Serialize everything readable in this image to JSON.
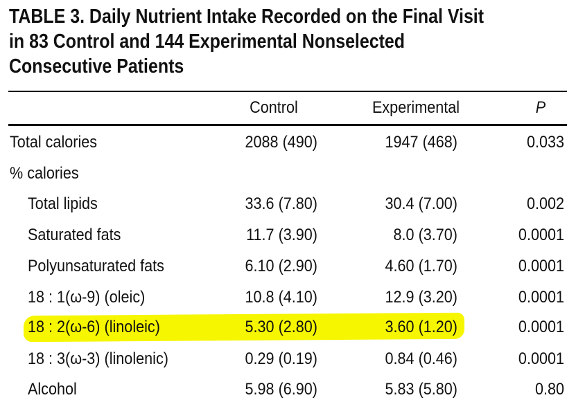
{
  "title": "TABLE 3.   Daily Nutrient Intake Recorded on the Final Visit in 83 Control and 144 Experimental Nonselected Consecutive Patients",
  "headers": {
    "label": "",
    "control": "Control",
    "experimental": "Experimental",
    "p": "P"
  },
  "rows": [
    {
      "label": "Total calories",
      "control": "2088 (490)",
      "experimental": "1947 (468)",
      "p": "0.033"
    },
    {
      "label": "% calories",
      "control": "",
      "experimental": "",
      "p": ""
    },
    {
      "label": "Total lipids",
      "control": "33.6 (7.80)",
      "experimental": "30.4 (7.00)",
      "p": "0.002"
    },
    {
      "label": "Saturated fats",
      "control": "11.7 (3.90)",
      "experimental": "8.0 (3.70)",
      "p": "0.0001"
    },
    {
      "label": "Polyunsaturated fats",
      "control": "6.10 (2.90)",
      "experimental": "4.60 (1.70)",
      "p": "0.0001"
    },
    {
      "label": "18 : 1(ω-9) (oleic)",
      "control": "10.8 (4.10)",
      "experimental": "12.9 (3.20)",
      "p": "0.0001"
    },
    {
      "label": "18 : 2(ω-6) (linoleic)",
      "control": "5.30 (2.80)",
      "experimental": "3.60 (1.20)",
      "p": "0.0001"
    },
    {
      "label": "18 : 3(ω-3) (linolenic)",
      "control": "0.29 (0.19)",
      "experimental": "0.84 (0.46)",
      "p": "0.0001"
    },
    {
      "label": "Alcohol",
      "control": "5.98 (6.90)",
      "experimental": "5.83 (5.80)",
      "p": "0.80"
    }
  ],
  "highlight_color": "#f6f600"
}
